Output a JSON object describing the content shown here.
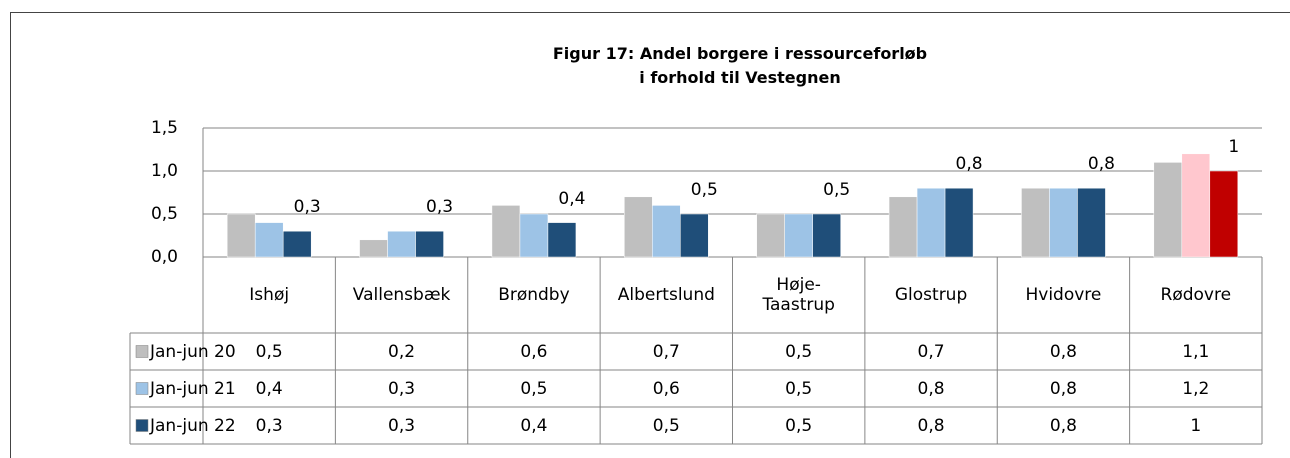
{
  "chart_data": {
    "type": "bar",
    "title": [
      "Figur 17: Andel borgere i ressourceforløb",
      "i forhold til Vestegnen"
    ],
    "categories": [
      "Ishøj",
      "Vallensbæk",
      "Brøndby",
      "Albertslund",
      "Høje-\nTaastrup",
      "Glostrup",
      "Hvidovre",
      "Rødovre"
    ],
    "series": [
      {
        "name": "Jan-jun 20",
        "color": "#bfbfbf",
        "colors": [
          "#bfbfbf",
          "#bfbfbf",
          "#bfbfbf",
          "#bfbfbf",
          "#bfbfbf",
          "#bfbfbf",
          "#bfbfbf",
          "#bfbfbf"
        ],
        "values": [
          0.5,
          0.2,
          0.6,
          0.7,
          0.5,
          0.7,
          0.8,
          1.1
        ],
        "value_labels": [
          "0,5",
          "0,2",
          "0,6",
          "0,7",
          "0,5",
          "0,7",
          "0,8",
          "1,1"
        ]
      },
      {
        "name": "Jan-jun 21",
        "color": "#9dc3e6",
        "colors": [
          "#9dc3e6",
          "#9dc3e6",
          "#9dc3e6",
          "#9dc3e6",
          "#9dc3e6",
          "#9dc3e6",
          "#9dc3e6",
          "#ffc7ce"
        ],
        "values": [
          0.4,
          0.3,
          0.5,
          0.6,
          0.5,
          0.8,
          0.8,
          1.2
        ],
        "value_labels": [
          "0,4",
          "0,3",
          "0,5",
          "0,6",
          "0,5",
          "0,8",
          "0,8",
          "1,2"
        ]
      },
      {
        "name": "Jan-jun 22",
        "color": "#1f4e79",
        "colors": [
          "#1f4e79",
          "#1f4e79",
          "#1f4e79",
          "#1f4e79",
          "#1f4e79",
          "#1f4e79",
          "#1f4e79",
          "#c00000"
        ],
        "values": [
          0.3,
          0.3,
          0.4,
          0.5,
          0.5,
          0.8,
          0.8,
          1
        ],
        "value_labels": [
          "0,3",
          "0,3",
          "0,4",
          "0,5",
          "0,5",
          "0,8",
          "0,8",
          "1"
        ],
        "data_labels": true
      }
    ],
    "ylim": [
      0,
      1.5
    ],
    "yticks": [
      {
        "value": 0,
        "label": "0,0"
      },
      {
        "value": 0.5,
        "label": "0,5"
      },
      {
        "value": 1,
        "label": "1,0"
      },
      {
        "value": 1.5,
        "label": "1,5"
      }
    ],
    "grid": true
  }
}
